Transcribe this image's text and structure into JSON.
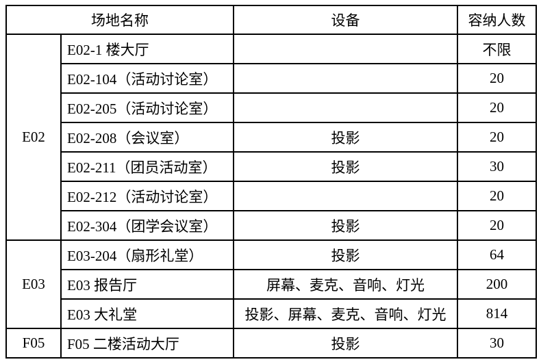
{
  "colors": {
    "background": "#ffffff",
    "border": "#000000",
    "text": "#000000"
  },
  "table": {
    "headers": {
      "venue_name": "场地名称",
      "equipment": "设备",
      "capacity": "容纳人数"
    },
    "groups": [
      {
        "building": "E02",
        "rows": [
          {
            "venue": "E02-1 楼大厅",
            "equipment": "",
            "capacity": "不限"
          },
          {
            "venue": "E02-104（活动讨论室）",
            "equipment": "",
            "capacity": "20"
          },
          {
            "venue": "E02-205（活动讨论室）",
            "equipment": "",
            "capacity": "20"
          },
          {
            "venue": "E02-208（会议室）",
            "equipment": "投影",
            "capacity": "20"
          },
          {
            "venue": "E02-211（团员活动室）",
            "equipment": "投影",
            "capacity": "30"
          },
          {
            "venue": "E02-212（活动讨论室）",
            "equipment": "",
            "capacity": "20"
          },
          {
            "venue": "E02-304（团学会议室）",
            "equipment": "投影",
            "capacity": "20"
          }
        ]
      },
      {
        "building": "E03",
        "rows": [
          {
            "venue": "E03-204（扇形礼堂）",
            "equipment": "投影",
            "capacity": "64"
          },
          {
            "venue": "E03 报告厅",
            "equipment": "屏幕、麦克、音响、灯光",
            "capacity": "200"
          },
          {
            "venue": "E03 大礼堂",
            "equipment": "投影、屏幕、麦克、音响、灯光",
            "capacity": "814"
          }
        ]
      },
      {
        "building": "F05",
        "rows": [
          {
            "venue": "F05 二楼活动大厅",
            "equipment": "投影",
            "capacity": "30"
          }
        ]
      }
    ]
  }
}
